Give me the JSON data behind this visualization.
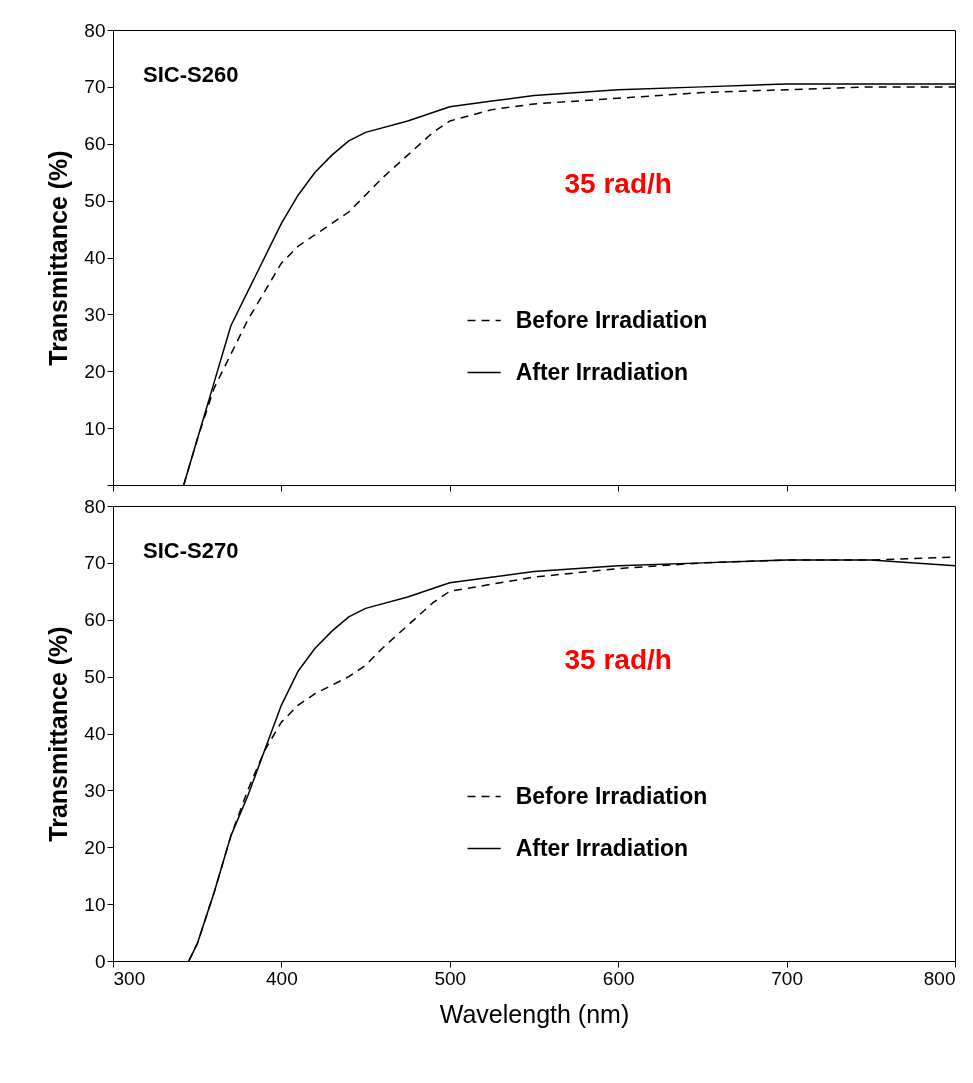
{
  "chart_data": [
    {
      "type": "line",
      "ylabel": "Transmittance (%)",
      "annotations": [
        "SIC-S260",
        "35 rad/h"
      ],
      "xlim": [
        300,
        800
      ],
      "xticks": [
        300,
        400,
        500,
        600,
        700,
        800
      ],
      "ylim": [
        0,
        80
      ],
      "yticks": [
        {
          "value": 0,
          "label": null
        },
        10,
        20,
        30,
        40,
        50,
        60,
        70,
        80
      ],
      "tick_labels": "y",
      "legend": "right",
      "grid": false,
      "series": [
        {
          "name": "Before Irradiation",
          "color": "#000000",
          "line_style": "dashed",
          "x": [
            342,
            350,
            360,
            370,
            380,
            390,
            400,
            410,
            420,
            430,
            440,
            450,
            460,
            475,
            490,
            500,
            525,
            550,
            600,
            650,
            700,
            750,
            800
          ],
          "values": [
            0,
            8,
            17,
            23,
            29,
            34,
            39,
            42,
            44,
            46,
            48,
            51,
            54,
            58,
            62,
            64,
            66,
            67,
            68,
            69,
            69.5,
            70,
            70
          ]
        },
        {
          "name": "After Irradiation",
          "color": "#000000",
          "line_style": "solid",
          "x": [
            342,
            350,
            360,
            370,
            380,
            390,
            400,
            410,
            420,
            430,
            440,
            450,
            475,
            500,
            525,
            550,
            600,
            650,
            700,
            750,
            800
          ],
          "values": [
            0,
            8,
            18,
            28,
            34,
            40,
            46,
            51,
            55,
            58,
            60.5,
            62,
            64,
            66.5,
            67.5,
            68.5,
            69.5,
            70,
            70.5,
            70.5,
            70.5
          ]
        }
      ]
    },
    {
      "type": "line",
      "xlabel": "Wavelength (nm)",
      "ylabel": "Transmittance (%)",
      "annotations": [
        "SIC-S270",
        "35 rad/h"
      ],
      "xlim": [
        300,
        800
      ],
      "xticks": [
        300,
        400,
        500,
        600,
        700,
        800
      ],
      "ylim": [
        0,
        80
      ],
      "yticks": [
        0,
        10,
        20,
        30,
        40,
        50,
        60,
        70,
        80
      ],
      "legend": "right",
      "grid": false,
      "series": [
        {
          "name": "Before Irradiation",
          "color": "#000000",
          "line_style": "dashed",
          "x": [
            345,
            350,
            360,
            370,
            380,
            390,
            400,
            410,
            420,
            430,
            440,
            450,
            460,
            475,
            490,
            500,
            550,
            600,
            650,
            700,
            750,
            800
          ],
          "values": [
            0,
            3,
            12,
            22,
            30,
            37,
            42,
            45,
            47,
            48.5,
            50,
            52,
            55,
            59,
            63,
            65,
            67.5,
            69,
            70,
            70.5,
            70.5,
            71
          ]
        },
        {
          "name": "After Irradiation",
          "color": "#000000",
          "line_style": "solid",
          "x": [
            345,
            350,
            360,
            370,
            380,
            390,
            400,
            410,
            420,
            430,
            440,
            450,
            475,
            500,
            550,
            600,
            650,
            700,
            750,
            800
          ],
          "values": [
            0,
            3,
            12,
            22,
            29,
            37,
            45,
            51,
            55,
            58,
            60.5,
            62,
            64,
            66.5,
            68.5,
            69.5,
            70,
            70.5,
            70.5,
            69.5
          ]
        }
      ]
    }
  ]
}
